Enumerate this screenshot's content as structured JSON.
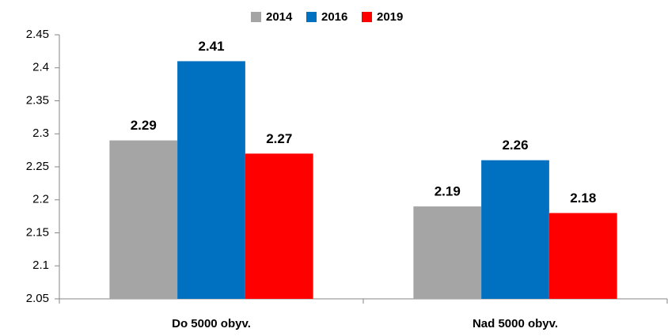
{
  "chart_data": {
    "type": "bar",
    "categories": [
      "Do 5000 obyv.",
      "Nad 5000 obyv."
    ],
    "series": [
      {
        "name": "2014",
        "color": "#a5a5a5",
        "values": [
          2.29,
          2.19
        ]
      },
      {
        "name": "2016",
        "color": "#0070c0",
        "values": [
          2.41,
          2.26
        ]
      },
      {
        "name": "2019",
        "color": "#ff0000",
        "values": [
          2.27,
          2.18
        ]
      }
    ],
    "ylim": [
      2.05,
      2.45
    ],
    "yticks": [
      2.05,
      2.1,
      2.15,
      2.2,
      2.25,
      2.3,
      2.35,
      2.4,
      2.45
    ],
    "legend": "top"
  }
}
